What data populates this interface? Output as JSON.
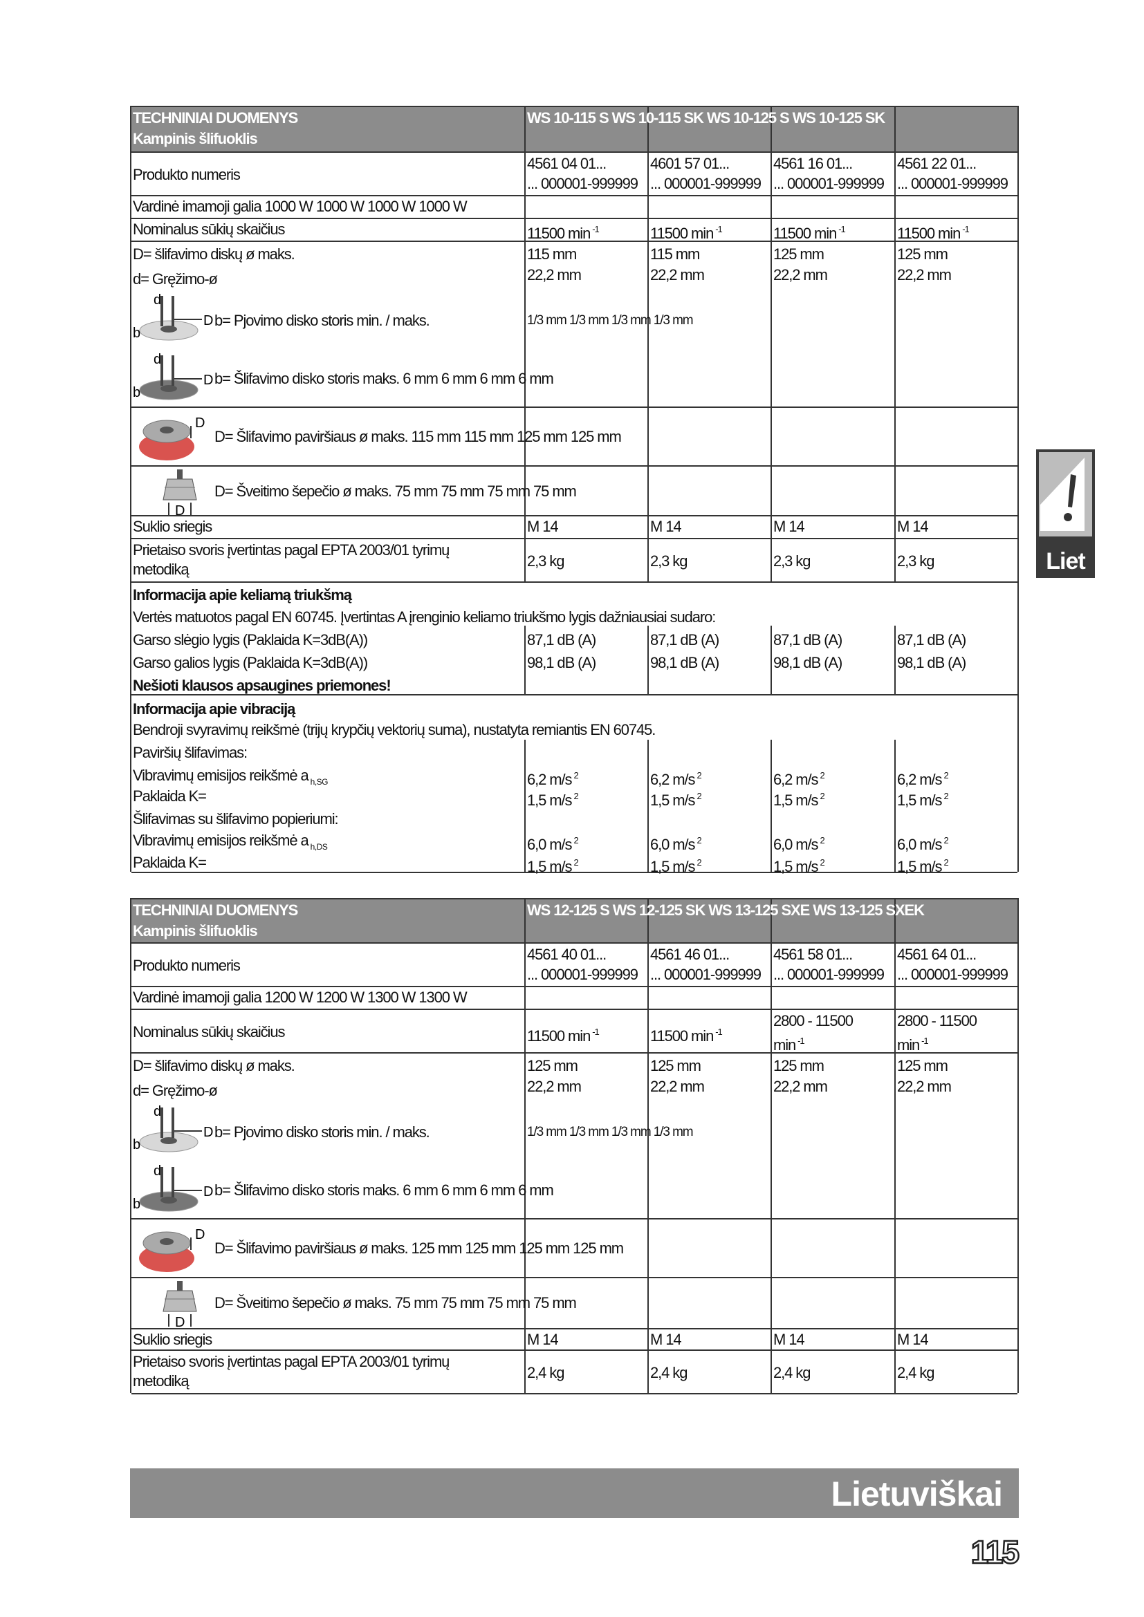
{
  "side_tab": {
    "label": "Liet",
    "icon": "warning-exclamation-icon"
  },
  "footer": {
    "language": "Lietuviškai",
    "page_number": "115"
  },
  "icon_letters": {
    "d": "d",
    "b": "b",
    "D": "D"
  },
  "table1": {
    "title": "TECHNINIAI DUOMENYS",
    "subtitle": "Kampinis šlifuoklis",
    "models": "WS 10-115 S  WS 10-115 SK  WS 10-125 S  WS 10-125 SK",
    "product": {
      "label": "Produkto numeris",
      "values": [
        [
          "4561 04 01...",
          "... 000001-999999"
        ],
        [
          "4601 57 01...",
          "... 000001-999999"
        ],
        [
          "4561 16 01...",
          "... 000001-999999"
        ],
        [
          "4561 22 01...",
          "... 000001-999999"
        ]
      ]
    },
    "power": "Vardinė imamoji galia 1000 W 1000 W 1000 W 1000 W",
    "speed": {
      "label": "Nominalus sūkių skaičius",
      "values": [
        {
          "line1": "",
          "text": "11500 min",
          "sup": "-1"
        },
        {
          "line1": "",
          "text": "11500 min",
          "sup": "-1"
        },
        {
          "line1": "",
          "text": "11500 min",
          "sup": "-1"
        },
        {
          "line1": "",
          "text": "11500 min",
          "sup": "-1"
        }
      ]
    },
    "disc": {
      "label_D": "D= šlifavimo diskų ø maks.",
      "label_d": "d= Gręžimo-ø",
      "D": [
        "115 mm",
        "115 mm",
        "125 mm",
        "125 mm"
      ],
      "d": [
        "22,2 mm",
        "22,2 mm",
        "22,2 mm",
        "22,2 mm"
      ]
    },
    "cutting": {
      "label": "b= Pjovimo disko storis min. / maks.",
      "values": "1/3 mm 1/3 mm 1/3 mm 1/3 mm"
    },
    "grinding": "b= Šlifavimo disko storis maks. 6 mm 6 mm 6 mm 6 mm",
    "surface": "D= Šlifavimo paviršiaus ø maks. 115 mm 115 mm 125 mm 125 mm",
    "brush": "D= Šveitimo šepečio ø maks. 75 mm 75 mm 75 mm 75 mm",
    "spindle": {
      "label": "Suklio sriegis",
      "values": [
        "M 14",
        "M 14",
        "M 14",
        "M 14"
      ]
    },
    "weight": {
      "label1": "Prietaiso svoris įvertintas pagal EPTA 2003/01 tyrimų",
      "label2": "metodiką",
      "values": [
        "2,3 kg",
        "2,3 kg",
        "2,3 kg",
        "2,3 kg"
      ]
    },
    "noise": {
      "title": "Informacija apie keliamą triukšmą",
      "note": "Vertės matuotos pagal EN 60745. Įvertintas A įrenginio keliamo triukšmo lygis dažniausiai sudaro:",
      "pressure_label": "Garso slėgio lygis (Paklaida K=3dB(A))",
      "pressure": [
        "87,1 dB (A)",
        "87,1 dB (A)",
        "87,1 dB (A)",
        "87,1 dB (A)"
      ],
      "power_label": "Garso galios lygis (Paklaida K=3dB(A))",
      "power": [
        "98,1 dB (A)",
        "98,1 dB (A)",
        "98,1 dB (A)",
        "98,1 dB (A)"
      ],
      "warning": "Nešioti klausos apsaugines priemones!"
    },
    "vibration": {
      "title": "Informacija apie vibraciją",
      "note": "Bendroji svyravimų reikšmė (trijų krypčių vektorių suma), nustatyta remiantis EN 60745.",
      "surface_label": "Paviršių šlifavimas:",
      "emission_label": "Vibravimų emisijos reikšmė a",
      "sg_sub": "h,SG",
      "uncertainty_label": "Paklaida K=",
      "sg": [
        "6,2 m/s",
        "6,2 m/s",
        "6,2 m/s",
        "6,2 m/s"
      ],
      "sg_k": [
        "1,5 m/s",
        "1,5 m/s",
        "1,5 m/s",
        "1,5 m/s"
      ],
      "paper_label": "Šlifavimas su šlifavimo popieriumi:",
      "ds_sub": "h,DS",
      "ds": [
        "6,0 m/s",
        "6,0 m/s",
        "6,0 m/s",
        "6,0 m/s"
      ],
      "ds_k": [
        "1,5 m/s",
        "1,5 m/s",
        "1,5 m/s",
        "1,5 m/s"
      ],
      "sup": "2"
    }
  },
  "table2": {
    "title": "TECHNINIAI DUOMENYS",
    "subtitle": "Kampinis šlifuoklis",
    "models": "WS 12-125 S  WS 12-125 SK  WS 13-125 SXE     WS 13-125 SXEK",
    "product": {
      "label": "Produkto numeris",
      "values": [
        [
          "4561 40 01...",
          "... 000001-999999"
        ],
        [
          "4561 46 01...",
          "... 000001-999999"
        ],
        [
          "4561 58 01...",
          "... 000001-999999"
        ],
        [
          "4561 64 01...",
          "... 000001-999999"
        ]
      ]
    },
    "power": "Vardinė imamoji galia 1200 W 1200 W 1300 W 1300 W",
    "speed": {
      "label": "Nominalus sūkių skaičius",
      "values": [
        {
          "line1": "",
          "text": "11500 min",
          "sup": "-1"
        },
        {
          "line1": "",
          "text": "11500 min",
          "sup": "-1"
        },
        {
          "line1": "2800 - 11500",
          "text": "min",
          "sup": "-1"
        },
        {
          "line1": "2800 - 11500",
          "text": "min",
          "sup": "-1"
        }
      ]
    },
    "disc": {
      "label_D": "D= šlifavimo diskų ø maks.",
      "label_d": "d= Gręžimo-ø",
      "D": [
        "125 mm",
        "125 mm",
        "125 mm",
        "125 mm"
      ],
      "d": [
        "22,2 mm",
        "22,2 mm",
        "22,2 mm",
        "22,2 mm"
      ]
    },
    "cutting": {
      "label": "b= Pjovimo disko storis min. / maks.",
      "values": "1/3 mm 1/3 mm 1/3 mm 1/3 mm"
    },
    "grinding": "b= Šlifavimo disko storis maks. 6 mm 6 mm 6 mm 6 mm",
    "surface": "D= Šlifavimo paviršiaus ø maks. 125 mm 125 mm 125 mm 125 mm",
    "brush": "D= Šveitimo šepečio ø maks. 75 mm 75 mm 75 mm 75 mm",
    "spindle": {
      "label": "Suklio sriegis",
      "values": [
        "M 14",
        "M 14",
        "M 14",
        "M 14"
      ]
    },
    "weight": {
      "label1": "Prietaiso svoris įvertintas pagal EPTA 2003/01 tyrimų",
      "label2": "metodiką",
      "values": [
        "2,4 kg",
        "2,4 kg",
        "2,4 kg",
        "2,4 kg"
      ]
    }
  }
}
